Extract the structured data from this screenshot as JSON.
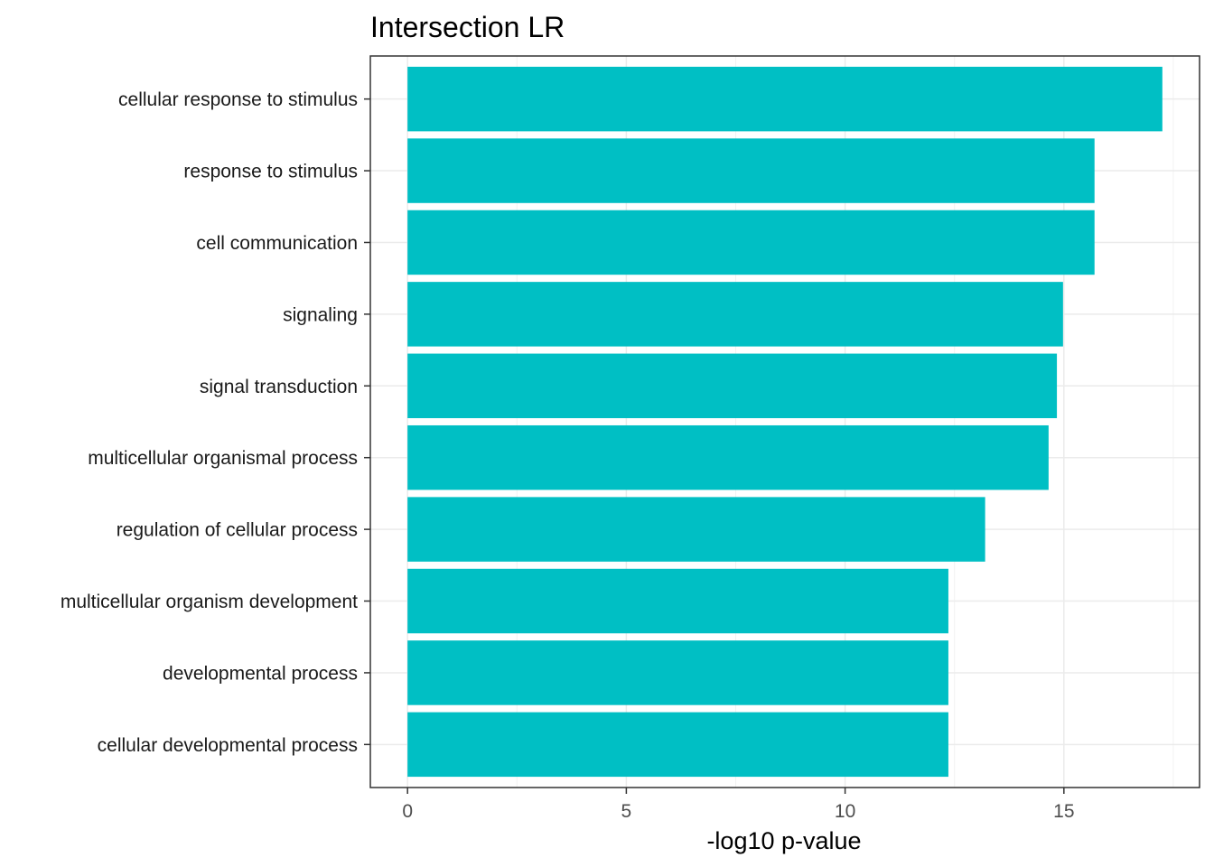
{
  "chart_data": {
    "type": "bar",
    "orientation": "horizontal",
    "title": "Intersection LR",
    "xlabel": "-log10 p-value",
    "ylabel": "",
    "categories": [
      "cellular response to stimulus",
      "response to stimulus",
      "cell communication",
      "signaling",
      "signal transduction",
      "multicellular organismal process",
      "regulation of cellular process",
      "multicellular organism development",
      "developmental process",
      "cellular developmental process"
    ],
    "values": [
      17.25,
      15.7,
      15.7,
      14.98,
      14.84,
      14.65,
      13.2,
      12.36,
      12.36,
      12.36
    ],
    "xlim": [
      -0.85,
      18.1
    ],
    "xticks": [
      0,
      5,
      10,
      15
    ],
    "grid": true,
    "bar_color": "#00BFC4",
    "legend": "none"
  }
}
